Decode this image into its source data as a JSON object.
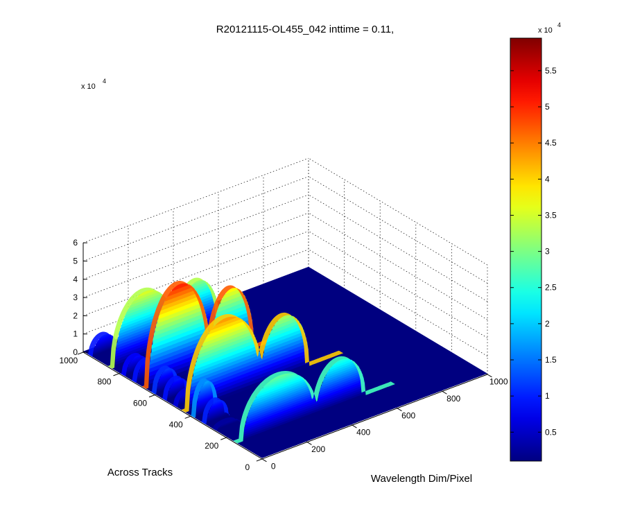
{
  "chart_data": {
    "type": "surface",
    "title": "R20121115-OL455_042 inttime = 0.11,",
    "xlabel": "Wavelength Dim/Pixel",
    "ylabel": "Across Tracks",
    "zlabel": "",
    "x_ticks": [
      "0",
      "200",
      "400",
      "600",
      "800",
      "1000"
    ],
    "y_ticks": [
      "0",
      "200",
      "400",
      "600",
      "800",
      "1000"
    ],
    "z_ticks": [
      "0",
      "1",
      "2",
      "3",
      "4",
      "5",
      "6"
    ],
    "z_exponent_label": "x 10",
    "z_exponent_power": "4",
    "colorbar_exponent_label": "x 10",
    "colorbar_exponent_power": "4",
    "colorbar_ticks": [
      "0.5",
      "1",
      "1.5",
      "2",
      "2.5",
      "3",
      "3.5",
      "4",
      "4.5",
      "5",
      "5.5"
    ],
    "xlim": [
      0,
      1000
    ],
    "ylim": [
      0,
      1000
    ],
    "zlim": [
      0,
      60000
    ],
    "clim": [
      1000,
      59500
    ],
    "grid": true,
    "colormap": "jet",
    "bands": [
      {
        "y": 150,
        "x_start": 0,
        "x_end": 700,
        "peaks": [
          {
            "x": 190,
            "z": 29000,
            "w": 165
          },
          {
            "x": 460,
            "z": 25000,
            "w": 110
          }
        ]
      },
      {
        "y": 270,
        "x_start": 0,
        "x_end": 110,
        "peaks": [
          {
            "x": 55,
            "z": 3000,
            "w": 50
          }
        ]
      },
      {
        "y": 330,
        "x_start": 0,
        "x_end": 110,
        "peaks": [
          {
            "x": 55,
            "z": 11000,
            "w": 50
          }
        ]
      },
      {
        "y": 390,
        "x_start": 0,
        "x_end": 110,
        "peaks": [
          {
            "x": 55,
            "z": 18000,
            "w": 50
          }
        ]
      },
      {
        "y": 440,
        "x_start": 0,
        "x_end": 700,
        "peaks": [
          {
            "x": 180,
            "z": 44000,
            "w": 165
          },
          {
            "x": 440,
            "z": 33000,
            "w": 110
          }
        ]
      },
      {
        "y": 490,
        "x_start": 0,
        "x_end": 110,
        "peaks": [
          {
            "x": 55,
            "z": 7000,
            "w": 50
          }
        ]
      },
      {
        "y": 550,
        "x_start": 0,
        "x_end": 110,
        "peaks": [
          {
            "x": 55,
            "z": 10000,
            "w": 50
          }
        ]
      },
      {
        "y": 610,
        "x_start": 0,
        "x_end": 110,
        "peaks": [
          {
            "x": 55,
            "z": 12000,
            "w": 50
          }
        ]
      },
      {
        "y": 660,
        "x_start": 0,
        "x_end": 600,
        "peaks": [
          {
            "x": 150,
            "z": 51000,
            "w": 140
          },
          {
            "x": 380,
            "z": 38000,
            "w": 100
          }
        ]
      },
      {
        "y": 720,
        "x_start": 0,
        "x_end": 110,
        "peaks": [
          {
            "x": 55,
            "z": 10000,
            "w": 50
          }
        ]
      },
      {
        "y": 780,
        "x_start": 0,
        "x_end": 110,
        "peaks": [
          {
            "x": 55,
            "z": 9000,
            "w": 50
          }
        ]
      },
      {
        "y": 850,
        "x_start": 0,
        "x_end": 550,
        "peaks": [
          {
            "x": 150,
            "z": 36000,
            "w": 140
          },
          {
            "x": 380,
            "z": 31000,
            "w": 100
          }
        ]
      },
      {
        "y": 960,
        "x_start": 0,
        "x_end": 110,
        "peaks": [
          {
            "x": 55,
            "z": 10000,
            "w": 55
          }
        ]
      }
    ]
  }
}
